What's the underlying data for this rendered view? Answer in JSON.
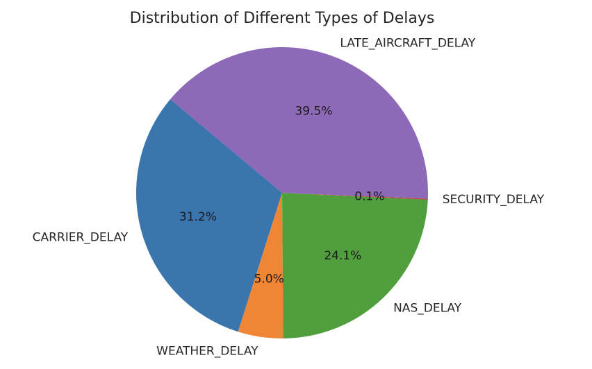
{
  "chart_data": {
    "type": "pie",
    "title": "Distribution of Different Types of Delays",
    "categories": [
      "CARRIER_DELAY",
      "WEATHER_DELAY",
      "NAS_DELAY",
      "SECURITY_DELAY",
      "LATE_AIRCRAFT_DELAY"
    ],
    "values": [
      31.2,
      5.0,
      24.1,
      0.1,
      39.5
    ],
    "value_labels": [
      "31.2%",
      "5.0%",
      "24.1%",
      "0.1%",
      "39.5%"
    ],
    "colors": [
      "#3a75ae",
      "#ef8636",
      "#519e3e",
      "#c53a32",
      "#8d69b8"
    ],
    "start_angle_deg": 140,
    "direction": "counterclockwise",
    "legend": "none"
  }
}
